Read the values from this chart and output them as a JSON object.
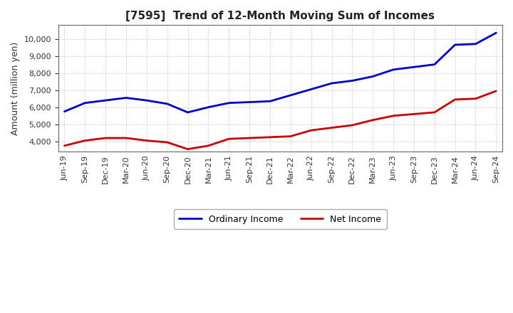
{
  "title": "[7595]  Trend of 12-Month Moving Sum of Incomes",
  "ylabel": "Amount (million yen)",
  "background_color": "#ffffff",
  "plot_bg_color": "#ffffff",
  "grid_color": "#bbbbbb",
  "ordinary_income_color": "#0000cc",
  "net_income_color": "#cc0000",
  "ylim": [
    3400,
    10800
  ],
  "yticks": [
    4000,
    5000,
    6000,
    7000,
    8000,
    9000,
    10000
  ],
  "x_labels": [
    "Jun-19",
    "Sep-19",
    "Dec-19",
    "Mar-20",
    "Jun-20",
    "Sep-20",
    "Dec-20",
    "Mar-21",
    "Jun-21",
    "Sep-21",
    "Dec-21",
    "Mar-22",
    "Jun-22",
    "Sep-22",
    "Dec-22",
    "Mar-23",
    "Jun-23",
    "Sep-23",
    "Dec-23",
    "Mar-24",
    "Jun-24",
    "Sep-24"
  ],
  "ordinary_income": [
    5750,
    6250,
    6400,
    6550,
    6400,
    6200,
    5700,
    6000,
    6250,
    6300,
    6350,
    6700,
    7050,
    7400,
    7550,
    7800,
    8200,
    8350,
    8500,
    9650,
    9700,
    10350
  ],
  "net_income": [
    3750,
    4050,
    4200,
    4200,
    4050,
    3950,
    3550,
    3750,
    4150,
    4200,
    4250,
    4300,
    4650,
    4800,
    4950,
    5250,
    5500,
    5600,
    5700,
    6450,
    6500,
    6950
  ],
  "title_fontsize": 11,
  "tick_fontsize": 8,
  "ylabel_fontsize": 9,
  "legend_fontsize": 9,
  "linewidth": 2.0
}
